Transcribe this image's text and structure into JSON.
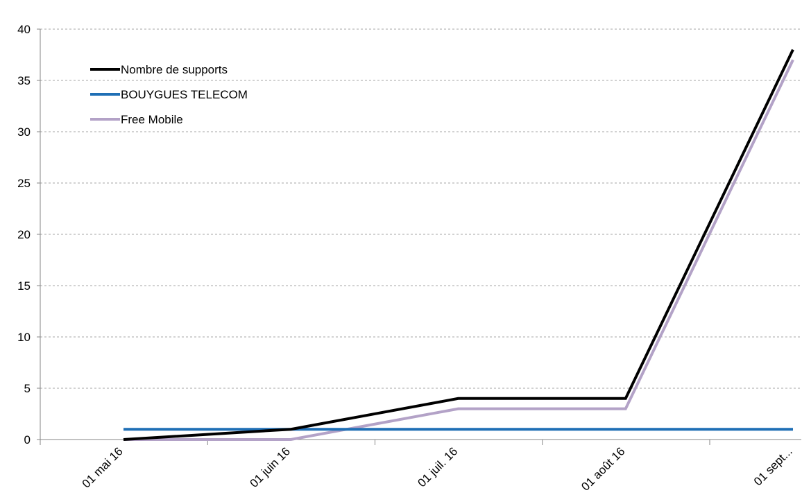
{
  "chart_data": {
    "type": "line",
    "title": "",
    "xlabel": "",
    "ylabel": "",
    "categories": [
      "01 mai 16",
      "01 juin 16",
      "01 juil. 16",
      "01 août 16",
      "01 sept..."
    ],
    "ylim": [
      0,
      40
    ],
    "yticks": [
      0,
      5,
      10,
      15,
      20,
      25,
      30,
      35,
      40
    ],
    "grid": "horizontal dashed",
    "legend_position": "top-left",
    "series": [
      {
        "name": "Nombre de supports",
        "color": "#000000",
        "values": [
          0,
          1,
          4,
          4,
          38
        ]
      },
      {
        "name": "BOUYGUES TELECOM",
        "color": "#1f6fb5",
        "values": [
          1,
          1,
          1,
          1,
          1
        ]
      },
      {
        "name": "Free Mobile",
        "color": "#b3a2c7",
        "values": [
          0,
          0,
          3,
          3,
          37
        ]
      }
    ]
  }
}
